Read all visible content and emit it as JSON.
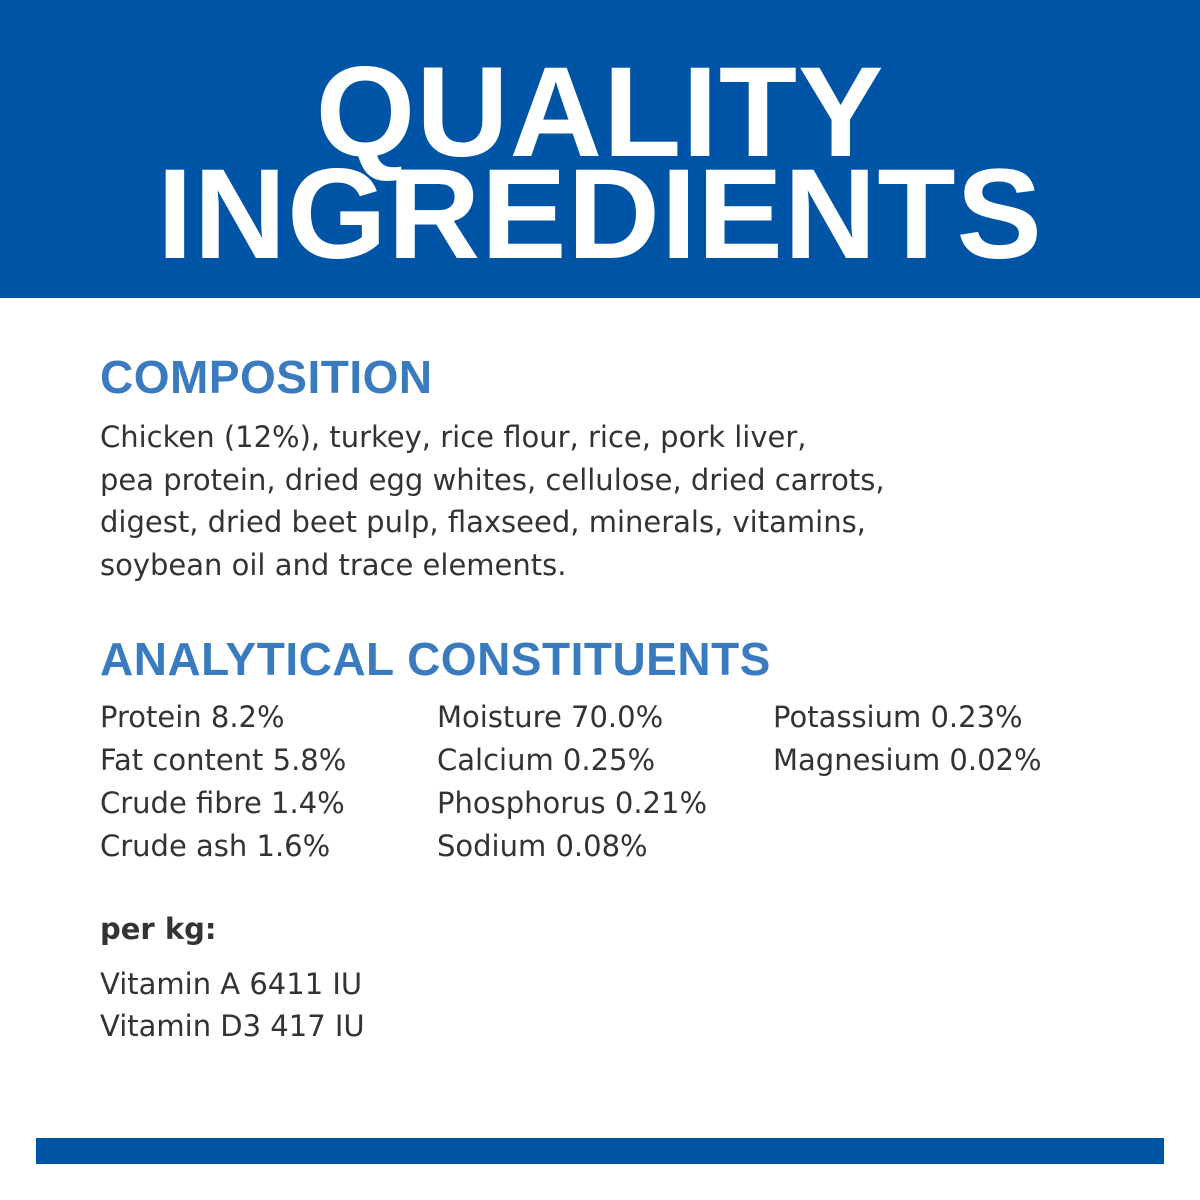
{
  "title": {
    "line1": "QUALITY",
    "line2": "INGREDIENTS"
  },
  "composition": {
    "heading": "COMPOSITION",
    "lines": [
      "Chicken (12%), turkey, rice flour, rice, pork liver,",
      "pea protein, dried egg whites, cellulose, dried carrots,",
      "digest, dried beet pulp, flaxseed, minerals, vitamins,",
      "soybean oil and trace elements."
    ]
  },
  "analytical": {
    "heading": "ANALYTICAL CONSTITUENTS",
    "columns": [
      [
        "Protein 8.2%",
        "Fat content 5.8%",
        "Crude fibre 1.4%",
        "Crude ash 1.6%"
      ],
      [
        "Moisture 70.0%",
        "Calcium 0.25%",
        "Phosphorus 0.21%",
        "Sodium 0.08%"
      ],
      [
        "Potassium 0.23%",
        "Magnesium 0.02%"
      ]
    ]
  },
  "per_kg": {
    "label": "per kg:",
    "items": [
      "Vitamin A 6411 IU",
      "Vitamin D3 417 IU"
    ]
  },
  "colors": {
    "brand_blue": "#0054a6",
    "heading_blue": "#3a7bc0",
    "text": "#333333"
  }
}
